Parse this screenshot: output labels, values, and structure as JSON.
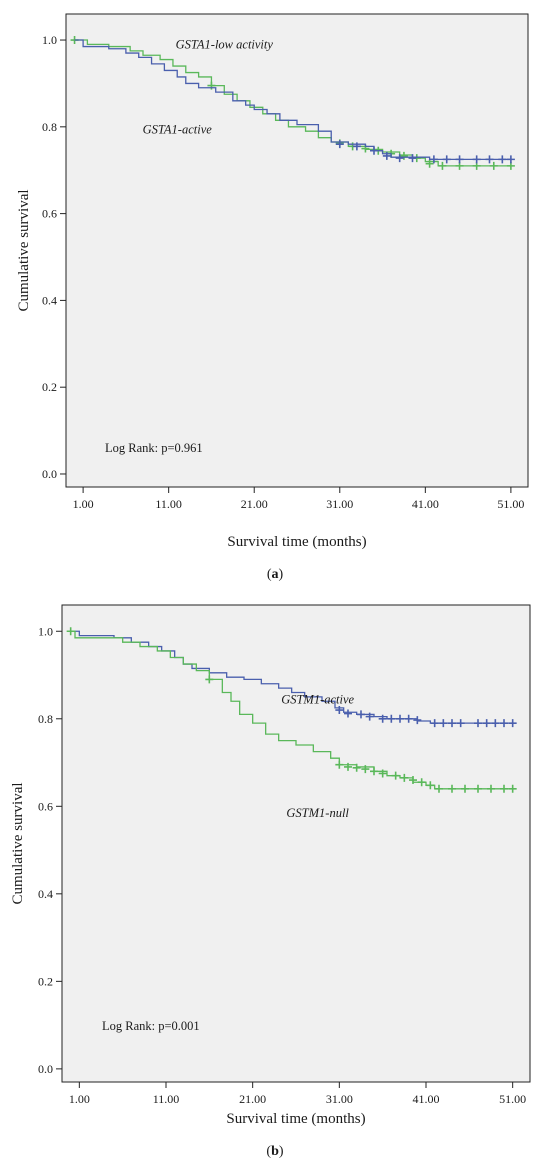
{
  "chart_data": [
    {
      "type": "line",
      "panel_label": "(a)",
      "xlabel": "Survival time (months)",
      "ylabel": "Cumulative survival",
      "xlim": [
        -1,
        53
      ],
      "ylim": [
        -0.03,
        1.06
      ],
      "x_ticks": [
        1,
        11,
        21,
        31,
        41,
        51
      ],
      "x_tick_labels": [
        "1.00",
        "11.00",
        "21.00",
        "31.00",
        "41.00",
        "51.00"
      ],
      "y_ticks": [
        0,
        0.2,
        0.4,
        0.6,
        0.8,
        1.0
      ],
      "y_tick_labels": [
        "0.0",
        "0.2",
        "0.4",
        "0.6",
        "0.8",
        "1.0"
      ],
      "grid": false,
      "plot_background": "#f0f0f0",
      "annotation": "Log Rank: p=0.961",
      "series": [
        {
          "name": "GSTA1-low activity",
          "color": "#5ab85a",
          "points": [
            [
              0,
              1.0
            ],
            [
              1.5,
              0.99
            ],
            [
              4,
              0.985
            ],
            [
              6.5,
              0.975
            ],
            [
              8,
              0.965
            ],
            [
              10,
              0.955
            ],
            [
              11.5,
              0.94
            ],
            [
              13,
              0.925
            ],
            [
              14.5,
              0.915
            ],
            [
              16,
              0.895
            ],
            [
              17.5,
              0.875
            ],
            [
              19,
              0.86
            ],
            [
              20.5,
              0.845
            ],
            [
              22,
              0.83
            ],
            [
              23.5,
              0.815
            ],
            [
              25,
              0.8
            ],
            [
              27,
              0.79
            ],
            [
              28.5,
              0.775
            ],
            [
              30,
              0.765
            ],
            [
              32,
              0.755
            ],
            [
              34,
              0.748
            ],
            [
              36,
              0.742
            ],
            [
              38,
              0.735
            ],
            [
              39.5,
              0.728
            ],
            [
              41,
              0.72
            ],
            [
              42.5,
              0.71
            ],
            [
              51,
              0.71
            ]
          ],
          "censored": [
            [
              0,
              1.0
            ],
            [
              16,
              0.895
            ],
            [
              31,
              0.762
            ],
            [
              32.5,
              0.755
            ],
            [
              34,
              0.75
            ],
            [
              35.5,
              0.745
            ],
            [
              37,
              0.738
            ],
            [
              38.5,
              0.733
            ],
            [
              40,
              0.728
            ],
            [
              41.5,
              0.715
            ],
            [
              43,
              0.71
            ],
            [
              45,
              0.71
            ],
            [
              47,
              0.71
            ],
            [
              49,
              0.71
            ],
            [
              51,
              0.71
            ]
          ]
        },
        {
          "name": "GSTA1-active",
          "color": "#4a5fad",
          "points": [
            [
              0,
              1.0
            ],
            [
              1,
              0.985
            ],
            [
              4,
              0.98
            ],
            [
              6,
              0.97
            ],
            [
              7.5,
              0.96
            ],
            [
              9,
              0.945
            ],
            [
              10.5,
              0.93
            ],
            [
              12,
              0.915
            ],
            [
              13,
              0.9
            ],
            [
              14.5,
              0.89
            ],
            [
              16.5,
              0.88
            ],
            [
              18.5,
              0.86
            ],
            [
              20,
              0.85
            ],
            [
              21,
              0.84
            ],
            [
              22.5,
              0.83
            ],
            [
              24,
              0.815
            ],
            [
              26,
              0.805
            ],
            [
              28.5,
              0.79
            ],
            [
              30,
              0.765
            ],
            [
              32,
              0.76
            ],
            [
              34,
              0.755
            ],
            [
              35,
              0.745
            ],
            [
              36,
              0.738
            ],
            [
              37,
              0.73
            ],
            [
              41.5,
              0.725
            ],
            [
              51,
              0.725
            ]
          ],
          "censored": [
            [
              31,
              0.76
            ],
            [
              33,
              0.755
            ],
            [
              35,
              0.745
            ],
            [
              36.5,
              0.733
            ],
            [
              38,
              0.728
            ],
            [
              39.5,
              0.728
            ],
            [
              42,
              0.725
            ],
            [
              43.5,
              0.725
            ],
            [
              45,
              0.725
            ],
            [
              47,
              0.725
            ],
            [
              48.5,
              0.725
            ],
            [
              50,
              0.725
            ],
            [
              51,
              0.725
            ]
          ]
        }
      ],
      "series_labels": [
        {
          "text": "GSTA1-low activity",
          "x": 17.5,
          "y": 0.98
        },
        {
          "text": "GSTA1-active",
          "x": 12,
          "y": 0.785
        }
      ]
    },
    {
      "type": "line",
      "panel_label": "(b)",
      "xlabel": "Survival time (months)",
      "ylabel": "Cumulative survival",
      "xlim": [
        -1,
        53
      ],
      "ylim": [
        -0.03,
        1.06
      ],
      "x_ticks": [
        1,
        11,
        21,
        31,
        41,
        51
      ],
      "x_tick_labels": [
        "1.00",
        "11.00",
        "21.00",
        "31.00",
        "41.00",
        "51.00"
      ],
      "y_ticks": [
        0,
        0.2,
        0.4,
        0.6,
        0.8,
        1.0
      ],
      "y_tick_labels": [
        "0.0",
        "0.2",
        "0.4",
        "0.6",
        "0.8",
        "1.0"
      ],
      "grid": false,
      "plot_background": "#f0f0f0",
      "annotation": "Log Rank: p=0.001",
      "series": [
        {
          "name": "GSTM1-active",
          "color": "#4a5fad",
          "points": [
            [
              0,
              1.0
            ],
            [
              1,
              0.99
            ],
            [
              5,
              0.985
            ],
            [
              7,
              0.975
            ],
            [
              9,
              0.965
            ],
            [
              10.5,
              0.955
            ],
            [
              12,
              0.94
            ],
            [
              13,
              0.925
            ],
            [
              14,
              0.915
            ],
            [
              16,
              0.905
            ],
            [
              18,
              0.895
            ],
            [
              20,
              0.89
            ],
            [
              22,
              0.88
            ],
            [
              24,
              0.87
            ],
            [
              25.5,
              0.86
            ],
            [
              27,
              0.85
            ],
            [
              29,
              0.84
            ],
            [
              30.5,
              0.825
            ],
            [
              31.5,
              0.815
            ],
            [
              33,
              0.81
            ],
            [
              35,
              0.805
            ],
            [
              36.5,
              0.8
            ],
            [
              40,
              0.795
            ],
            [
              41.5,
              0.79
            ],
            [
              51,
              0.79
            ]
          ],
          "censored": [
            [
              31,
              0.82
            ],
            [
              32,
              0.812
            ],
            [
              33.5,
              0.81
            ],
            [
              34.5,
              0.805
            ],
            [
              36,
              0.8
            ],
            [
              37,
              0.8
            ],
            [
              38,
              0.8
            ],
            [
              39,
              0.8
            ],
            [
              40,
              0.797
            ],
            [
              42,
              0.79
            ],
            [
              43,
              0.79
            ],
            [
              44,
              0.79
            ],
            [
              45,
              0.79
            ],
            [
              47,
              0.79
            ],
            [
              48,
              0.79
            ],
            [
              49,
              0.79
            ],
            [
              50,
              0.79
            ],
            [
              51,
              0.79
            ]
          ]
        },
        {
          "name": "GSTM1-null",
          "color": "#5ab85a",
          "points": [
            [
              0,
              1.0
            ],
            [
              0.5,
              0.985
            ],
            [
              6,
              0.975
            ],
            [
              8,
              0.965
            ],
            [
              10,
              0.955
            ],
            [
              11.5,
              0.94
            ],
            [
              13,
              0.925
            ],
            [
              14.5,
              0.91
            ],
            [
              16,
              0.89
            ],
            [
              17.5,
              0.86
            ],
            [
              18.5,
              0.84
            ],
            [
              19.5,
              0.81
            ],
            [
              21,
              0.79
            ],
            [
              22.5,
              0.765
            ],
            [
              24,
              0.75
            ],
            [
              26,
              0.74
            ],
            [
              28,
              0.725
            ],
            [
              30,
              0.71
            ],
            [
              31,
              0.695
            ],
            [
              33,
              0.69
            ],
            [
              35,
              0.68
            ],
            [
              36.5,
              0.67
            ],
            [
              38,
              0.665
            ],
            [
              39.5,
              0.655
            ],
            [
              41,
              0.648
            ],
            [
              42,
              0.64
            ],
            [
              51,
              0.64
            ]
          ],
          "censored": [
            [
              0,
              1.0
            ],
            [
              16,
              0.89
            ],
            [
              31,
              0.695
            ],
            [
              32,
              0.69
            ],
            [
              33,
              0.688
            ],
            [
              34,
              0.685
            ],
            [
              35,
              0.68
            ],
            [
              36,
              0.675
            ],
            [
              37.5,
              0.67
            ],
            [
              38.5,
              0.665
            ],
            [
              39.5,
              0.66
            ],
            [
              40.5,
              0.655
            ],
            [
              41.5,
              0.648
            ],
            [
              42.5,
              0.64
            ],
            [
              44,
              0.64
            ],
            [
              45.5,
              0.64
            ],
            [
              47,
              0.64
            ],
            [
              48.5,
              0.64
            ],
            [
              50,
              0.64
            ],
            [
              51,
              0.64
            ]
          ]
        }
      ],
      "series_labels": [
        {
          "text": "GSTM1-active",
          "x": 28.5,
          "y": 0.835
        },
        {
          "text": "GSTM1-null",
          "x": 28.5,
          "y": 0.575
        }
      ]
    }
  ]
}
